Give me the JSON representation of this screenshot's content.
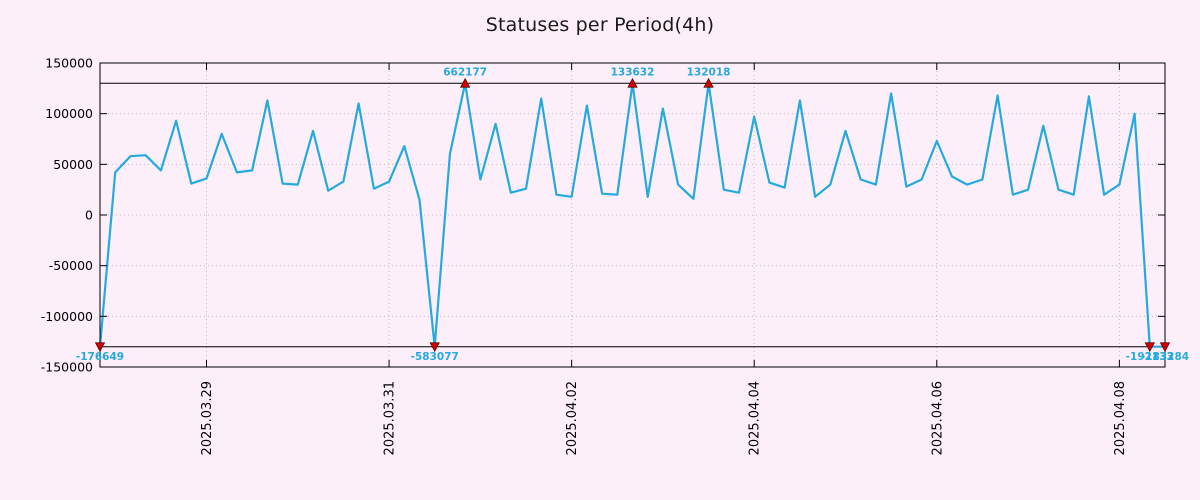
{
  "title": "Statuses per Period(4h)",
  "chart_data": {
    "type": "line",
    "title": "Statuses per Period(4h)",
    "x_start": "2025-03-27 20:00",
    "x_step_hours": 4,
    "values": [
      -176649,
      42000,
      58000,
      59000,
      44000,
      93000,
      31000,
      36000,
      80000,
      42000,
      44000,
      113000,
      31000,
      30000,
      83000,
      24000,
      33000,
      110000,
      26000,
      33000,
      68000,
      15000,
      -583077,
      60000,
      662177,
      35000,
      90000,
      22000,
      26000,
      115000,
      20000,
      18000,
      108000,
      21000,
      20000,
      133632,
      18000,
      105000,
      30000,
      16000,
      132018,
      25000,
      22000,
      97000,
      32000,
      27000,
      113000,
      18000,
      30000,
      83000,
      35000,
      30000,
      120000,
      28000,
      35000,
      73000,
      38000,
      30000,
      35000,
      118000,
      20000,
      25000,
      88000,
      25000,
      20000,
      117000,
      20000,
      30000,
      100000,
      -192133,
      -183284
    ],
    "x_ticks": [
      {
        "index": 7,
        "label": "2025.03.29"
      },
      {
        "index": 19,
        "label": "2025.03.31"
      },
      {
        "index": 31,
        "label": "2025.04.02"
      },
      {
        "index": 43,
        "label": "2025.04.04"
      },
      {
        "index": 55,
        "label": "2025.04.06"
      },
      {
        "index": 67,
        "label": "2025.04.08"
      }
    ],
    "y_ticks": [
      {
        "value": 150000,
        "label": "150000"
      },
      {
        "value": 100000,
        "label": "100000"
      },
      {
        "value": 50000,
        "label": "50000"
      },
      {
        "value": 0,
        "label": "0"
      },
      {
        "value": -50000,
        "label": "-50000"
      },
      {
        "value": -100000,
        "label": "-100000"
      },
      {
        "value": -150000,
        "label": "-150000"
      }
    ],
    "ylim": [
      -150000,
      150000
    ],
    "clip_min": -130000,
    "clip_max": 130000,
    "grid": true,
    "legend": "none",
    "annotations": [
      {
        "index": 0,
        "value": -176649,
        "label": "-176649",
        "position": "bottom"
      },
      {
        "index": 22,
        "value": -583077,
        "label": "-583077",
        "position": "bottom"
      },
      {
        "index": 24,
        "value": 662177,
        "label": "662177",
        "position": "top"
      },
      {
        "index": 35,
        "value": 133632,
        "label": "133632",
        "position": "top"
      },
      {
        "index": 40,
        "value": 132018,
        "label": "132018",
        "position": "top"
      },
      {
        "index": 69,
        "value": -192133,
        "label": "-192133",
        "position": "bottom"
      },
      {
        "index": 70,
        "value": -183284,
        "label": "-183284",
        "position": "bottom"
      }
    ],
    "colors": {
      "background": "#fdeffa",
      "line": "#24aadf",
      "marker": "#d40000",
      "marker_edge": "#5a0000",
      "annotation_text": "#24aadf",
      "grid": "#c8b8c8",
      "border": "#000000",
      "clip_line": "#000000",
      "text": "#000000"
    }
  }
}
